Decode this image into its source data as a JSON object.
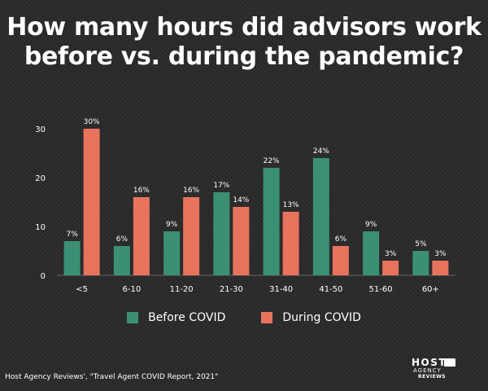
{
  "title_lines": [
    "How many hours did advisors work",
    "before vs. during the pandemic?"
  ],
  "source": "Host Agency Reviews', \"Travel Agent COVID Report, 2021\"",
  "logo": {
    "line1": "HOST",
    "line2": "AGENCY",
    "line3": "REVIEWS"
  },
  "colors": {
    "before": "#3b8f75",
    "during": "#e8735d",
    "background": "#2b2b2b"
  },
  "chart_data": {
    "type": "bar",
    "title": "How many hours did advisors work before vs. during the pandemic?",
    "categories": [
      "<5",
      "6-10",
      "11-20",
      "21-30",
      "31-40",
      "41-50",
      "51-60",
      "60+"
    ],
    "series": [
      {
        "name": "Before COVID",
        "values": [
          7,
          6,
          9,
          17,
          22,
          24,
          9,
          5
        ],
        "labels": [
          "7%",
          "6%",
          "9%",
          "17%",
          "22%",
          "24%",
          "9%",
          "5%"
        ]
      },
      {
        "name": "During COVID",
        "values": [
          30,
          16,
          16,
          14,
          13,
          6,
          3,
          3
        ],
        "labels": [
          "30%",
          "16%",
          "16%",
          "14%",
          "13%",
          "6%",
          "3%",
          "3%"
        ]
      }
    ],
    "ylim": [
      0,
      30
    ],
    "yticks": [
      0,
      10,
      20,
      30
    ],
    "xlabel": "",
    "ylabel": "",
    "grid": false,
    "legend": "bottom"
  }
}
